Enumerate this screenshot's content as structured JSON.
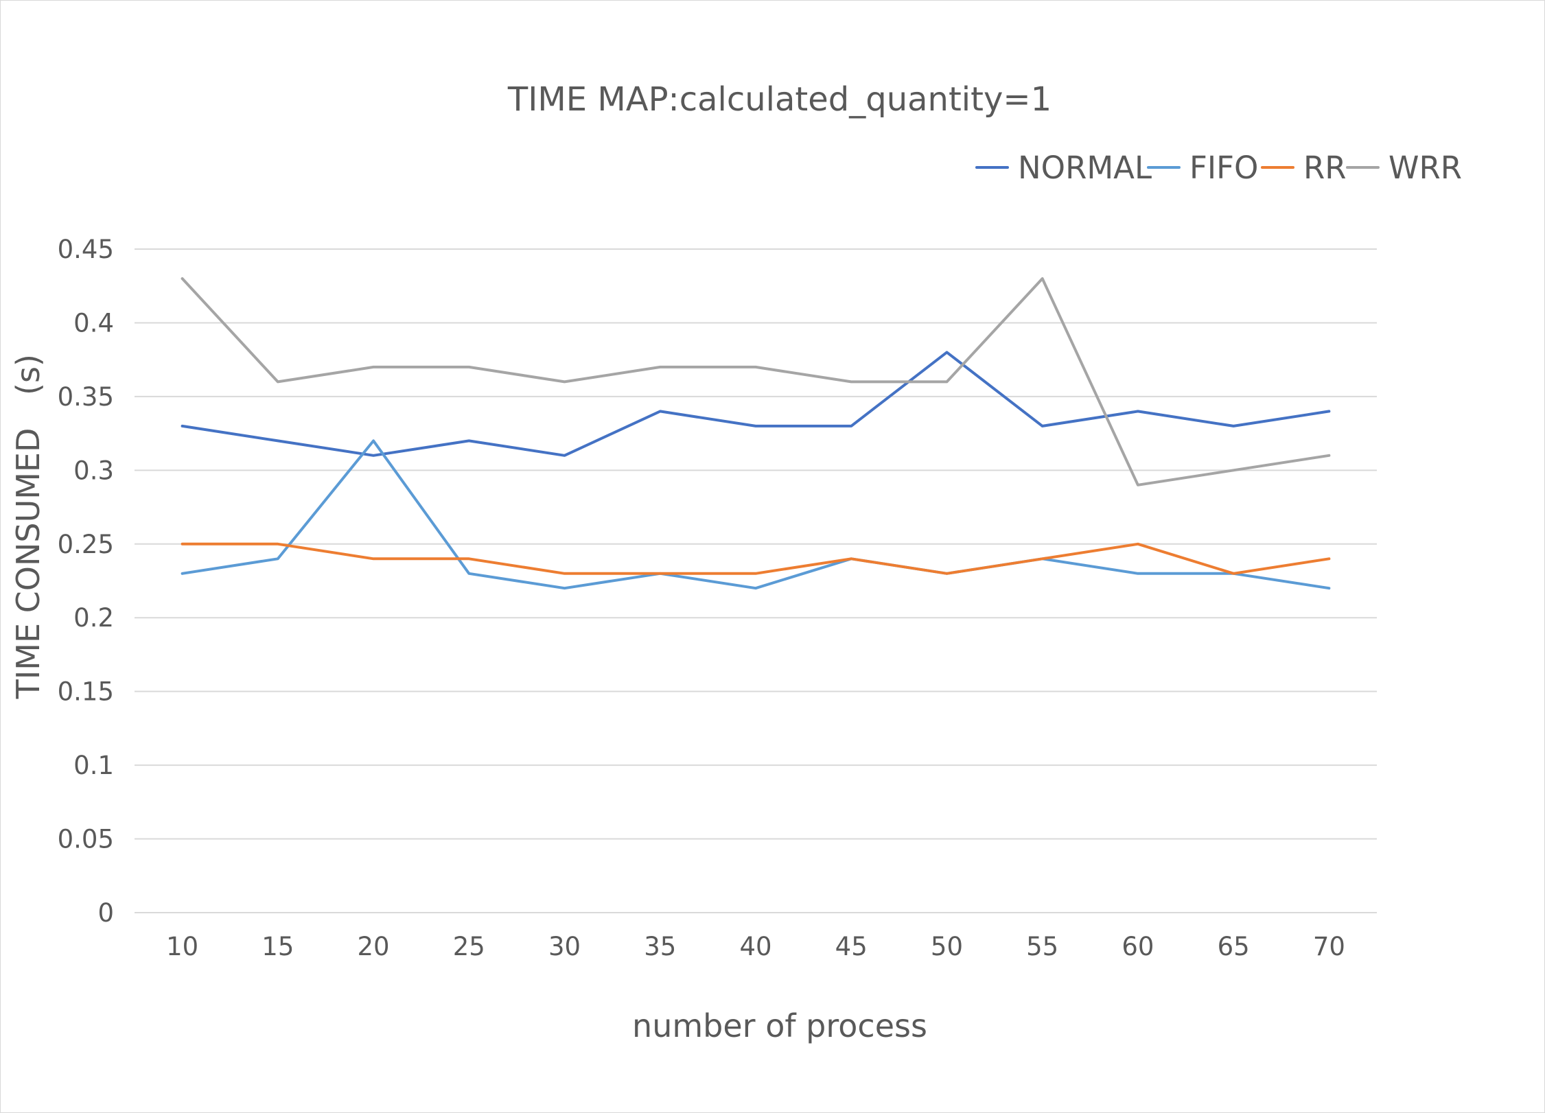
{
  "chart_data": {
    "type": "line",
    "title": "TIME MAP:calculated_quantity=1",
    "xlabel": "number of process",
    "ylabel": "TIME CONSUMED (s)",
    "ylabel_main": "TIME CONSUMED",
    "ylabel_unit": "(s)",
    "categories": [
      "10",
      "15",
      "20",
      "25",
      "30",
      "35",
      "40",
      "45",
      "50",
      "55",
      "60",
      "65",
      "70"
    ],
    "ylim": [
      0,
      0.45
    ],
    "yticks": [
      0,
      0.05,
      0.1,
      0.15,
      0.2,
      0.25,
      0.3,
      0.35,
      0.4,
      0.45
    ],
    "ytick_labels": [
      "0",
      "0.05",
      "0.1",
      "0.15",
      "0.2",
      "0.25",
      "0.3",
      "0.35",
      "0.4",
      "0.45"
    ],
    "grid": "horizontal",
    "legend_position": "top-right",
    "series": [
      {
        "name": "NORMAL",
        "color": "#4472c4",
        "values": [
          0.33,
          0.32,
          0.31,
          0.32,
          0.31,
          0.34,
          0.33,
          0.33,
          0.38,
          0.33,
          0.34,
          0.33,
          0.34
        ]
      },
      {
        "name": "FIFO",
        "color": "#5b9bd5",
        "values": [
          0.23,
          0.24,
          0.32,
          0.23,
          0.22,
          0.23,
          0.22,
          0.24,
          0.23,
          0.24,
          0.23,
          0.23,
          0.22
        ]
      },
      {
        "name": "RR",
        "color": "#ed7d31",
        "values": [
          0.25,
          0.25,
          0.24,
          0.24,
          0.23,
          0.23,
          0.23,
          0.24,
          0.23,
          0.24,
          0.25,
          0.23,
          0.24
        ]
      },
      {
        "name": "WRR",
        "color": "#a5a5a5",
        "values": [
          0.43,
          0.36,
          0.37,
          0.37,
          0.36,
          0.37,
          0.37,
          0.36,
          0.36,
          0.43,
          0.29,
          0.3,
          0.31
        ]
      }
    ]
  }
}
